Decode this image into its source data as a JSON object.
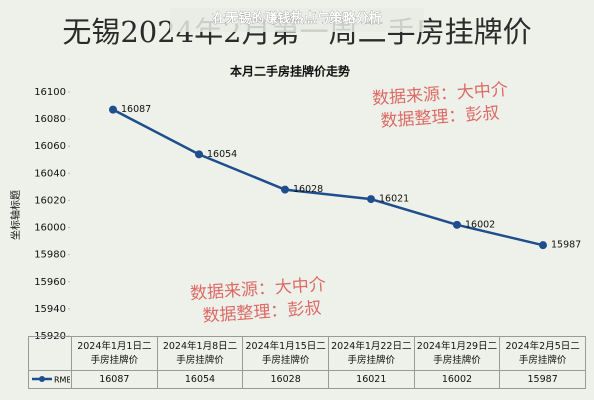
{
  "banner": "在无锡的赚钱热点与策略分析",
  "chart_data": {
    "type": "line",
    "heading": "无锡2024年2月第一周二手房挂牌价",
    "title": "本月二手房挂牌价走势",
    "y_label": "坐标轴标题",
    "categories": [
      "2024年1月1日二手房挂牌价",
      "2024年1月8日二手房挂牌价",
      "2024年1月15日二手房挂牌价",
      "2024年1月22日二手房挂牌价",
      "2024年1月29日二手房挂牌价",
      "2024年2月5日二手房挂牌价"
    ],
    "series": [
      {
        "name": "RMB",
        "color": "#1f4e8c",
        "values": [
          16087,
          16054,
          16028,
          16021,
          16002,
          15987
        ]
      }
    ],
    "ylim": [
      15920,
      16100
    ],
    "yticks": [
      15920,
      15940,
      15960,
      15980,
      16000,
      16020,
      16040,
      16060,
      16080,
      16100
    ],
    "annotations": [
      "数据来源：大中介",
      "数据整理：彭叔",
      "数据来源：大中介",
      "数据整理：彭叔"
    ],
    "data_table": true
  }
}
